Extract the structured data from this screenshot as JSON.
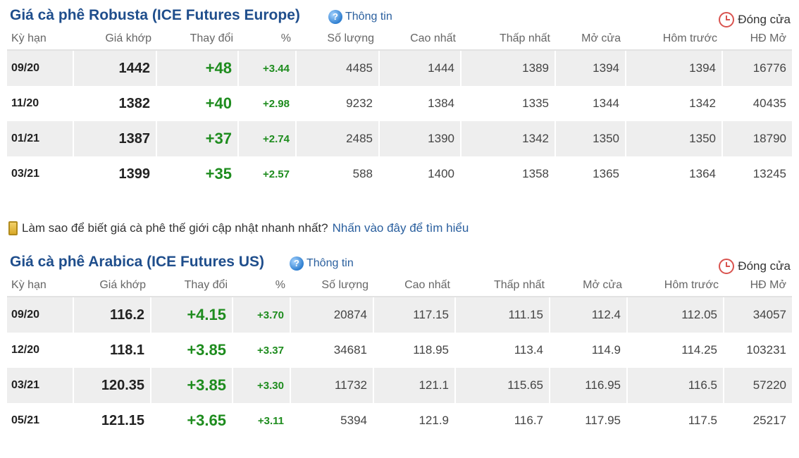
{
  "robusta": {
    "title": "Giá cà phê Robusta (ICE Futures Europe)",
    "info_label": "Thông tin",
    "info_icon": "help-icon",
    "status": "Đóng cửa",
    "status_icon": "clock-icon",
    "headers": [
      "Kỳ hạn",
      "Giá khớp",
      "Thay đổi",
      "%",
      "Số lượng",
      "Cao nhất",
      "Thấp nhất",
      "Mở cửa",
      "Hôm trước",
      "HĐ Mở"
    ],
    "rows": [
      [
        "09/20",
        "1442",
        "+48",
        "+3.44",
        "4485",
        "1444",
        "1389",
        "1394",
        "1394",
        "16776"
      ],
      [
        "11/20",
        "1382",
        "+40",
        "+2.98",
        "9232",
        "1384",
        "1335",
        "1344",
        "1342",
        "40435"
      ],
      [
        "01/21",
        "1387",
        "+37",
        "+2.74",
        "2485",
        "1390",
        "1342",
        "1350",
        "1350",
        "18790"
      ],
      [
        "03/21",
        "1399",
        "+35",
        "+2.57",
        "588",
        "1400",
        "1358",
        "1365",
        "1364",
        "13245"
      ]
    ]
  },
  "notice": {
    "icon": "phone-icon",
    "text": "Làm sao để biết giá cà phê thế giới cập nhật nhanh nhất?",
    "link": "Nhấn vào đây để tìm hiểu"
  },
  "arabica": {
    "title": "Giá cà phê Arabica (ICE Futures US)",
    "info_label": "Thông tin",
    "info_icon": "help-icon",
    "status": "Đóng cửa",
    "status_icon": "clock-icon",
    "headers": [
      "Kỳ hạn",
      "Giá khớp",
      "Thay đổi",
      "%",
      "Số lượng",
      "Cao nhất",
      "Thấp nhất",
      "Mở cửa",
      "Hôm trước",
      "HĐ Mở"
    ],
    "rows": [
      [
        "09/20",
        "116.2",
        "+4.15",
        "+3.70",
        "20874",
        "117.15",
        "111.15",
        "112.4",
        "112.05",
        "34057"
      ],
      [
        "12/20",
        "118.1",
        "+3.85",
        "+3.37",
        "34681",
        "118.95",
        "113.4",
        "114.9",
        "114.25",
        "103231"
      ],
      [
        "03/21",
        "120.35",
        "+3.85",
        "+3.30",
        "11732",
        "121.1",
        "115.65",
        "116.95",
        "116.5",
        "57220"
      ],
      [
        "05/21",
        "121.15",
        "+3.65",
        "+3.11",
        "5394",
        "121.9",
        "116.7",
        "117.95",
        "117.5",
        "25217"
      ]
    ]
  },
  "colors": {
    "title": "#1f4e8c",
    "positive": "#1e8c1e",
    "row_shade": "#eeeeee",
    "status_icon": "#d9534f"
  }
}
